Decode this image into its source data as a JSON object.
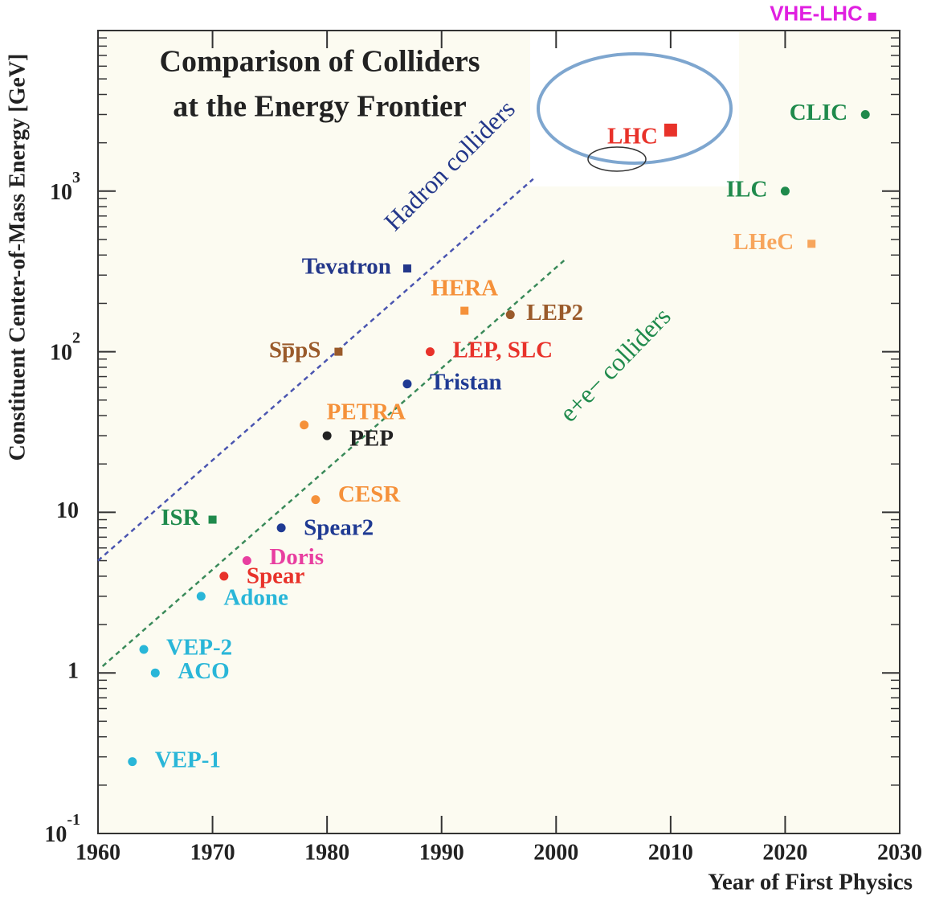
{
  "chart_data": {
    "type": "scatter",
    "title": [
      "Comparison of Colliders",
      "at the Energy Frontier"
    ],
    "x_label": "Year of First Physics",
    "y_label": "Constituent Center-of-Mass Energy [GeV]",
    "log_y": true,
    "xlim": [
      1960,
      2030
    ],
    "ylim": [
      0.1,
      10000
    ],
    "xticks": [
      1960,
      1970,
      1980,
      1990,
      2000,
      2010,
      2020,
      2030
    ],
    "yticks": [
      {
        "value": 0.1,
        "label": "10",
        "superscript": "-1"
      },
      1,
      10,
      {
        "value": 100,
        "label": "10",
        "superscript": "2"
      },
      {
        "value": 1000,
        "label": "10",
        "superscript": "3"
      }
    ],
    "lines": [
      {
        "name": "Hadron colliders",
        "color": "#4a55b0",
        "x": [
          1960,
          1998
        ],
        "y": [
          5,
          1190
        ]
      },
      {
        "name": "e+e− colliders",
        "color": "#3a8a5a",
        "x": [
          1960.4,
          2000.7
        ],
        "y": [
          1.1,
          370
        ]
      }
    ],
    "points": [
      {
        "label": "VEP-1",
        "x": 1963,
        "y": 0.28,
        "color": "#29b6d8",
        "marker": "circle"
      },
      {
        "label": "VEP-2",
        "x": 1964,
        "y": 1.4,
        "color": "#29b6d8",
        "marker": "circle"
      },
      {
        "label": "ACO",
        "x": 1965,
        "y": 1.0,
        "color": "#29b6d8",
        "marker": "circle"
      },
      {
        "label": "Adone",
        "x": 1969,
        "y": 3.0,
        "color": "#29b6d8",
        "marker": "circle"
      },
      {
        "label": "Spear",
        "x": 1971,
        "y": 4.0,
        "color": "#e8322a",
        "marker": "circle"
      },
      {
        "label": "Doris",
        "x": 1973,
        "y": 5.0,
        "color": "#e83ea0",
        "marker": "circle"
      },
      {
        "label": "Spear2",
        "x": 1976,
        "y": 8,
        "color": "#1f3a93",
        "marker": "circle"
      },
      {
        "label": "ISR",
        "x": 1970,
        "y": 9,
        "color": "#1f8a4c",
        "marker": "square"
      },
      {
        "label": "CESR",
        "x": 1979,
        "y": 12,
        "color": "#f5913a",
        "marker": "circle"
      },
      {
        "label": "PETRA",
        "x": 1978,
        "y": 35,
        "color": "#f5913a",
        "marker": "circle"
      },
      {
        "label": "PEP",
        "x": 1980,
        "y": 30,
        "color": "#222222",
        "marker": "circle"
      },
      {
        "label": "Sp̅pS",
        "x": 1981,
        "y": 100,
        "color": "#9a5a2a",
        "marker": "square"
      },
      {
        "label": "Tristan",
        "x": 1987,
        "y": 63,
        "color": "#1f3a93",
        "marker": "circle"
      },
      {
        "label": "LEP, SLC",
        "x": 1989,
        "y": 100,
        "color": "#e8322a",
        "marker": "circle"
      },
      {
        "label": "Tevatron",
        "x": 1987,
        "y": 330,
        "color": "#23378a",
        "marker": "square"
      },
      {
        "label": "HERA",
        "x": 1992,
        "y": 180,
        "color": "#f5913a",
        "marker": "square"
      },
      {
        "label": "LEP2",
        "x": 1996,
        "y": 170,
        "color": "#9a5a2a",
        "marker": "circle"
      },
      {
        "label": "LHC",
        "x": 2010,
        "y": 2400,
        "color": "#e8322a",
        "marker": "square"
      },
      {
        "label": "ILC",
        "x": 2020,
        "y": 1000,
        "color": "#1f8a4c",
        "marker": "circle"
      },
      {
        "label": "LHeC",
        "x": 2022.3,
        "y": 470,
        "color": "#f7a55c",
        "marker": "square"
      },
      {
        "label": "CLIC",
        "x": 2027,
        "y": 3000,
        "color": "#1f8a4c",
        "marker": "circle"
      },
      {
        "label": "VHE-LHC",
        "x": 2027.6,
        "y": 12200,
        "color": "#e020e0",
        "marker": "square"
      }
    ]
  }
}
